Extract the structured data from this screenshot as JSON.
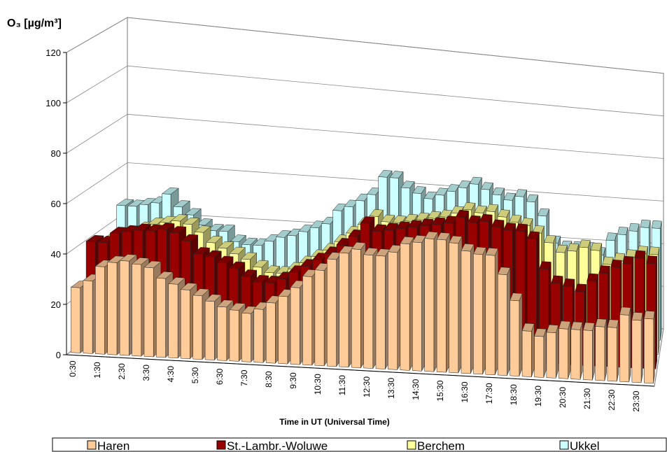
{
  "chart_data": {
    "type": "bar3d",
    "y_label": "O₃ [µg/m³]",
    "x_label": "Time in UT (Universal Time)",
    "categories": [
      "0:30",
      null,
      "1:30",
      null,
      "2:30",
      null,
      "3:30",
      null,
      "4:30",
      null,
      "5:30",
      null,
      "6:30",
      null,
      "7:30",
      null,
      "8:30",
      null,
      "9:30",
      null,
      "10:30",
      null,
      "11:30",
      null,
      "12:30",
      null,
      "13:30",
      null,
      "14:30",
      null,
      "15:30",
      null,
      "16:30",
      null,
      "17:30",
      null,
      "18:30",
      null,
      "19:30",
      null,
      "20:30",
      null,
      "21:30",
      null,
      "22:30",
      null,
      "23:30",
      null
    ],
    "ylim": [
      0,
      120
    ],
    "yticks": [
      0,
      20,
      40,
      60,
      80,
      100,
      120
    ],
    "grid": true,
    "legend": "bottom",
    "series": [
      {
        "name": "Haren",
        "color": "#ffcc99",
        "values": [
          26,
          29,
          35,
          37,
          38,
          37,
          36,
          32,
          30,
          28,
          26,
          24,
          22,
          21,
          20,
          22,
          25,
          28,
          32,
          37,
          40,
          45,
          48,
          50,
          48,
          48,
          50,
          54,
          55,
          57,
          57,
          56,
          53,
          52,
          52,
          44,
          33,
          20,
          18,
          20,
          22,
          22,
          22,
          24,
          24,
          30,
          28,
          29
        ]
      },
      {
        "name": "St.-Lambr.-Woluwe",
        "color": "#990000",
        "values": [
          40,
          40,
          44,
          45,
          46,
          46,
          47,
          46,
          43,
          38,
          37,
          35,
          33,
          30,
          28,
          28,
          30,
          33,
          36,
          39,
          42,
          46,
          50,
          56,
          53,
          54,
          55,
          56,
          57,
          58,
          59,
          62,
          60,
          61,
          59,
          58,
          58,
          55,
          42,
          36,
          35,
          33,
          38,
          42,
          45,
          47,
          50,
          48
        ]
      },
      {
        "name": "Berchem",
        "color": "#ffff99",
        "values": [
          36,
          38,
          40,
          42,
          44,
          45,
          46,
          45,
          42,
          38,
          36,
          34,
          32,
          29,
          27,
          27,
          29,
          32,
          35,
          38,
          42,
          46,
          50,
          54,
          52,
          52,
          53,
          54,
          55,
          56,
          58,
          60,
          59,
          60,
          58,
          56,
          55,
          52,
          48,
          44,
          45,
          47,
          46,
          40,
          42,
          44,
          46,
          46
        ]
      },
      {
        "name": "Ukkel",
        "color": "#ccffff",
        "values": [
          46,
          46,
          47,
          48,
          52,
          47,
          44,
          40,
          38,
          38,
          34,
          33,
          33,
          35,
          37,
          38,
          40,
          42,
          44,
          50,
          52,
          55,
          58,
          66,
          66,
          62,
          60,
          58,
          60,
          62,
          64,
          66,
          64,
          62,
          60,
          62,
          60,
          54,
          42,
          40,
          40,
          40,
          38,
          45,
          48,
          50,
          52,
          52
        ]
      }
    ]
  }
}
